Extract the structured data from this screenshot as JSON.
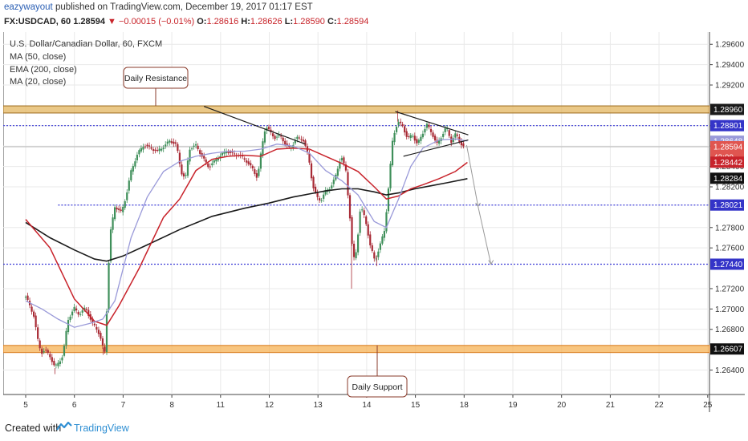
{
  "header": {
    "author": "eazywayout",
    "published_text": "published on TradingView.com, December 19, 2017 01:17 EST",
    "symbol": "FX:USDCAD, 60",
    "last": "1.28594",
    "change": "−0.00015 (−0.01%)",
    "open": "1.28616",
    "high": "1.28626",
    "low": "1.28590",
    "close": "1.28594",
    "o_label": "O:",
    "h_label": "H:",
    "l_label": "L:",
    "c_label": "C:"
  },
  "legend": {
    "title": "U.S. Dollar/Canadian Dollar, 60, FXCM",
    "ma50": "MA (50, close)",
    "ema200": "EMA (200, close)",
    "ma20": "MA (20, close)"
  },
  "footer": {
    "created_with": "Created with",
    "brand": "TradingView"
  },
  "colors": {
    "bull": "#3f8f5a",
    "bear": "#a82a35",
    "ma50": "#c8232b",
    "ema200": "#1a1a1a",
    "ma20": "#9a9ad9",
    "level": "#3e3ed6",
    "zone": "#e3b55f",
    "zone_border": "#9c6a1d",
    "support_zone": "#f5b254",
    "support_border": "#d8791b"
  },
  "chart_data": {
    "type": "candlestick",
    "symbol": "FX:USDCAD",
    "timeframe": "60",
    "x_ticks": [
      "5",
      "6",
      "7",
      "8",
      "11",
      "12",
      "13",
      "14",
      "15",
      "18",
      "19",
      "20",
      "21",
      "22",
      "25"
    ],
    "y_ticks": [
      "1.29600",
      "1.29400",
      "1.29200",
      "1.28800",
      "1.28600",
      "1.28400",
      "1.28200",
      "1.27800",
      "1.27600",
      "1.27200",
      "1.27000",
      "1.26800",
      "1.26400"
    ],
    "ylim": [
      1.2616,
      1.2972
    ],
    "price_labels": [
      {
        "text": "1.28960",
        "value": 1.2896,
        "bg": "#1a1a1a",
        "fg": "#ffffff"
      },
      {
        "text": "1.28801",
        "value": 1.28801,
        "bg": "#3434c8",
        "fg": "#ffffff"
      },
      {
        "text": "1.28648",
        "value": 1.28648,
        "bg": "#9a9ad9",
        "fg": "#ffffff"
      },
      {
        "text": "1.28594",
        "value": 1.28594,
        "bg": "#e05550",
        "fg": "#ffffff"
      },
      {
        "text": "42:09",
        "value": 1.2849,
        "bg": "#e05550",
        "fg": "#ffffff"
      },
      {
        "text": "1.28442",
        "value": 1.28442,
        "bg": "#c8232b",
        "fg": "#ffffff"
      },
      {
        "text": "1.28284",
        "value": 1.28284,
        "bg": "#111111",
        "fg": "#ffffff"
      },
      {
        "text": "1.28021",
        "value": 1.28021,
        "bg": "#3434c8",
        "fg": "#ffffff"
      },
      {
        "text": "1.27440",
        "value": 1.2744,
        "bg": "#3434c8",
        "fg": "#ffffff"
      },
      {
        "text": "1.26607",
        "value": 1.26607,
        "bg": "#111111",
        "fg": "#ffffff"
      }
    ],
    "zones": [
      {
        "name": "Daily Resistance",
        "low": 1.28925,
        "high": 1.28995
      },
      {
        "name": "Daily Support",
        "low": 1.26572,
        "high": 1.26642
      }
    ],
    "levels": [
      1.28801,
      1.28021,
      1.2744
    ],
    "annotations": [
      {
        "text": "Daily Resistance",
        "points_to": 1.28995
      },
      {
        "text": "Daily Support",
        "points_to": 1.26642
      }
    ],
    "indicators": [
      "MA (50, close)",
      "EMA (200, close)",
      "MA (20, close)"
    ],
    "ohlc_path": [
      [
        0,
        1.2712
      ],
      [
        1,
        1.2693
      ],
      [
        1.6,
        1.2665
      ],
      [
        2,
        1.2658
      ],
      [
        2.4,
        1.266
      ],
      [
        3,
        1.2653
      ],
      [
        3.6,
        1.2642
      ],
      [
        4.6,
        1.2655
      ],
      [
        5.2,
        1.2689
      ],
      [
        6,
        1.27
      ],
      [
        6.6,
        1.2695
      ],
      [
        7.4,
        1.2702
      ],
      [
        8.2,
        1.2685
      ],
      [
        8.7,
        1.2681
      ],
      [
        9.1,
        1.2675
      ],
      [
        9.55,
        1.2662
      ],
      [
        9.8,
        1.2658
      ],
      [
        10.1,
        1.272
      ],
      [
        10.4,
        1.2772
      ],
      [
        11,
        1.28
      ],
      [
        11.8,
        1.2795
      ],
      [
        12.4,
        1.2812
      ],
      [
        13,
        1.2835
      ],
      [
        13.8,
        1.2852
      ],
      [
        14.6,
        1.2862
      ],
      [
        15.4,
        1.2858
      ],
      [
        16.2,
        1.2854
      ],
      [
        17,
        1.286
      ],
      [
        17.8,
        1.2866
      ],
      [
        18.6,
        1.286
      ],
      [
        19.2,
        1.2834
      ],
      [
        19.7,
        1.2828
      ],
      [
        20.2,
        1.2858
      ],
      [
        21,
        1.286
      ],
      [
        21.8,
        1.2849
      ],
      [
        22.6,
        1.284
      ],
      [
        23.3,
        1.2845
      ],
      [
        24,
        1.285
      ],
      [
        24.8,
        1.2856
      ],
      [
        25.6,
        1.2852
      ],
      [
        26.4,
        1.285
      ],
      [
        27.2,
        1.2846
      ],
      [
        28,
        1.2838
      ],
      [
        28.6,
        1.2828
      ],
      [
        29.2,
        1.2862
      ],
      [
        29.6,
        1.288
      ],
      [
        30.2,
        1.2874
      ],
      [
        30.8,
        1.2868
      ],
      [
        31.4,
        1.287
      ],
      [
        32,
        1.2862
      ],
      [
        32.6,
        1.2858
      ],
      [
        33.4,
        1.2868
      ],
      [
        34.2,
        1.2866
      ],
      [
        34.9,
        1.285
      ],
      [
        35.4,
        1.2822
      ],
      [
        35.9,
        1.281
      ],
      [
        36.4,
        1.2806
      ],
      [
        37,
        1.2815
      ],
      [
        37.6,
        1.282
      ],
      [
        38.2,
        1.283
      ],
      [
        38.9,
        1.285
      ],
      [
        39.5,
        1.2835
      ],
      [
        40,
        1.279
      ],
      [
        40.4,
        1.2748
      ],
      [
        40.8,
        1.2758
      ],
      [
        41.3,
        1.28
      ],
      [
        41.9,
        1.2788
      ],
      [
        42.5,
        1.2762
      ],
      [
        43.1,
        1.2748
      ],
      [
        43.7,
        1.2762
      ],
      [
        44.3,
        1.2778
      ],
      [
        44.8,
        1.2822
      ],
      [
        45.3,
        1.287
      ],
      [
        45.9,
        1.2884
      ],
      [
        46.5,
        1.288
      ],
      [
        47.1,
        1.2866
      ],
      [
        47.7,
        1.2872
      ],
      [
        48.3,
        1.2862
      ],
      [
        48.9,
        1.2872
      ],
      [
        49.5,
        1.288
      ],
      [
        50.1,
        1.2873
      ],
      [
        50.7,
        1.2862
      ],
      [
        51.3,
        1.287
      ],
      [
        51.9,
        1.2878
      ],
      [
        52.5,
        1.2864
      ],
      [
        53.1,
        1.2873
      ],
      [
        53.6,
        1.2864
      ],
      [
        54.1,
        1.2858
      ]
    ],
    "ma50_path": [
      [
        0,
        1.2788
      ],
      [
        3,
        1.276
      ],
      [
        6,
        1.271
      ],
      [
        8.5,
        1.2688
      ],
      [
        10,
        1.2684
      ],
      [
        11.5,
        1.2703
      ],
      [
        14,
        1.274
      ],
      [
        17,
        1.279
      ],
      [
        19,
        1.2808
      ],
      [
        21,
        1.2836
      ],
      [
        23,
        1.2847
      ],
      [
        25,
        1.285
      ],
      [
        27,
        1.2851
      ],
      [
        29,
        1.285
      ],
      [
        31,
        1.2857
      ],
      [
        33,
        1.2858
      ],
      [
        35,
        1.2857
      ],
      [
        37,
        1.285
      ],
      [
        39,
        1.2843
      ],
      [
        41,
        1.2835
      ],
      [
        43,
        1.282
      ],
      [
        44.5,
        1.2808
      ],
      [
        46,
        1.2811
      ],
      [
        47.5,
        1.2818
      ],
      [
        49,
        1.2822
      ],
      [
        51,
        1.2828
      ],
      [
        53,
        1.2835
      ],
      [
        54.5,
        1.2844
      ]
    ],
    "ema200_path": [
      [
        0,
        1.2785
      ],
      [
        3,
        1.277
      ],
      [
        6,
        1.2758
      ],
      [
        8.5,
        1.2749
      ],
      [
        10,
        1.2747
      ],
      [
        12,
        1.2752
      ],
      [
        15,
        1.2763
      ],
      [
        19,
        1.2778
      ],
      [
        23,
        1.2791
      ],
      [
        27,
        1.2799
      ],
      [
        30,
        1.2804
      ],
      [
        33,
        1.281
      ],
      [
        35,
        1.2813
      ],
      [
        37,
        1.2816
      ],
      [
        39,
        1.2818
      ],
      [
        41,
        1.2818
      ],
      [
        43,
        1.2815
      ],
      [
        44.5,
        1.2812
      ],
      [
        46,
        1.2814
      ],
      [
        48,
        1.2818
      ],
      [
        50,
        1.2821
      ],
      [
        52,
        1.2824
      ],
      [
        54.5,
        1.2828
      ]
    ],
    "ma20_path": [
      [
        0,
        1.2708
      ],
      [
        2,
        1.27
      ],
      [
        4,
        1.269
      ],
      [
        6,
        1.2682
      ],
      [
        8,
        1.2686
      ],
      [
        9.5,
        1.269
      ],
      [
        11,
        1.2708
      ],
      [
        13,
        1.277
      ],
      [
        15,
        1.281
      ],
      [
        17,
        1.2835
      ],
      [
        19,
        1.2845
      ],
      [
        21,
        1.285
      ],
      [
        23,
        1.2853
      ],
      [
        25,
        1.2855
      ],
      [
        27,
        1.2855
      ],
      [
        29,
        1.2857
      ],
      [
        31,
        1.2862
      ],
      [
        33,
        1.286
      ],
      [
        35,
        1.2853
      ],
      [
        37,
        1.2836
      ],
      [
        39,
        1.2826
      ],
      [
        41,
        1.2812
      ],
      [
        43,
        1.2786
      ],
      [
        44.5,
        1.278
      ],
      [
        46,
        1.2808
      ],
      [
        47.5,
        1.284
      ],
      [
        49,
        1.2858
      ],
      [
        51,
        1.2866
      ],
      [
        53,
        1.2867
      ],
      [
        54.5,
        1.2865
      ]
    ],
    "trendlines": [
      {
        "name": "descending-trendline-1",
        "from": [
          22,
          1.2899
        ],
        "to": [
          34.5,
          1.2862
        ]
      },
      {
        "name": "triangle-upper",
        "from": [
          45.6,
          1.2894
        ],
        "to": [
          54.6,
          1.2871
        ]
      },
      {
        "name": "triangle-lower",
        "from": [
          46.6,
          1.285
        ],
        "to": [
          54.6,
          1.2866
        ]
      },
      {
        "name": "projection-1",
        "from": [
          54.4,
          1.2861
        ],
        "to": [
          55.8,
          1.2801
        ]
      },
      {
        "name": "projection-2",
        "from": [
          55.8,
          1.2801
        ],
        "to": [
          57.4,
          1.2744
        ]
      }
    ]
  }
}
